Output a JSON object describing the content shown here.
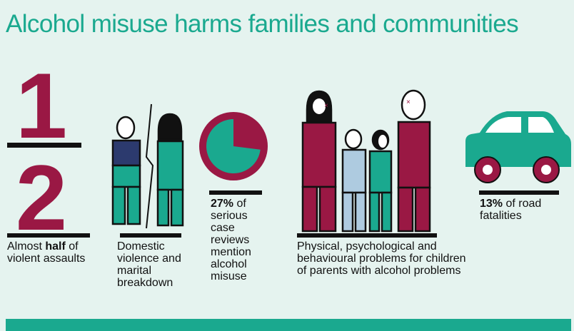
{
  "title": "Alcohol misuse harms families and communities",
  "colors": {
    "background": "#e5f3ef",
    "teal": "#1aa98f",
    "maroon": "#9a1844",
    "navy": "#2c3a6e",
    "light_blue": "#aecbe0",
    "outline": "#111111"
  },
  "fraction": {
    "numerator": "1",
    "denominator": "2"
  },
  "pie": {
    "value_percent": 27
  },
  "captions": {
    "assaults": {
      "pre": "Almost ",
      "bold": "half",
      "post": " of violent assaults"
    },
    "domestic": {
      "text": "Domestic violence and marital breakdown"
    },
    "reviews": {
      "bold": "27%",
      "post": " of serious case reviews mention alcohol misuse"
    },
    "children": {
      "text": "Physical, psychological and behavioural problems for children of parents with alcohol problems"
    },
    "road": {
      "bold": "13%",
      "post": " of road fatalities"
    }
  }
}
